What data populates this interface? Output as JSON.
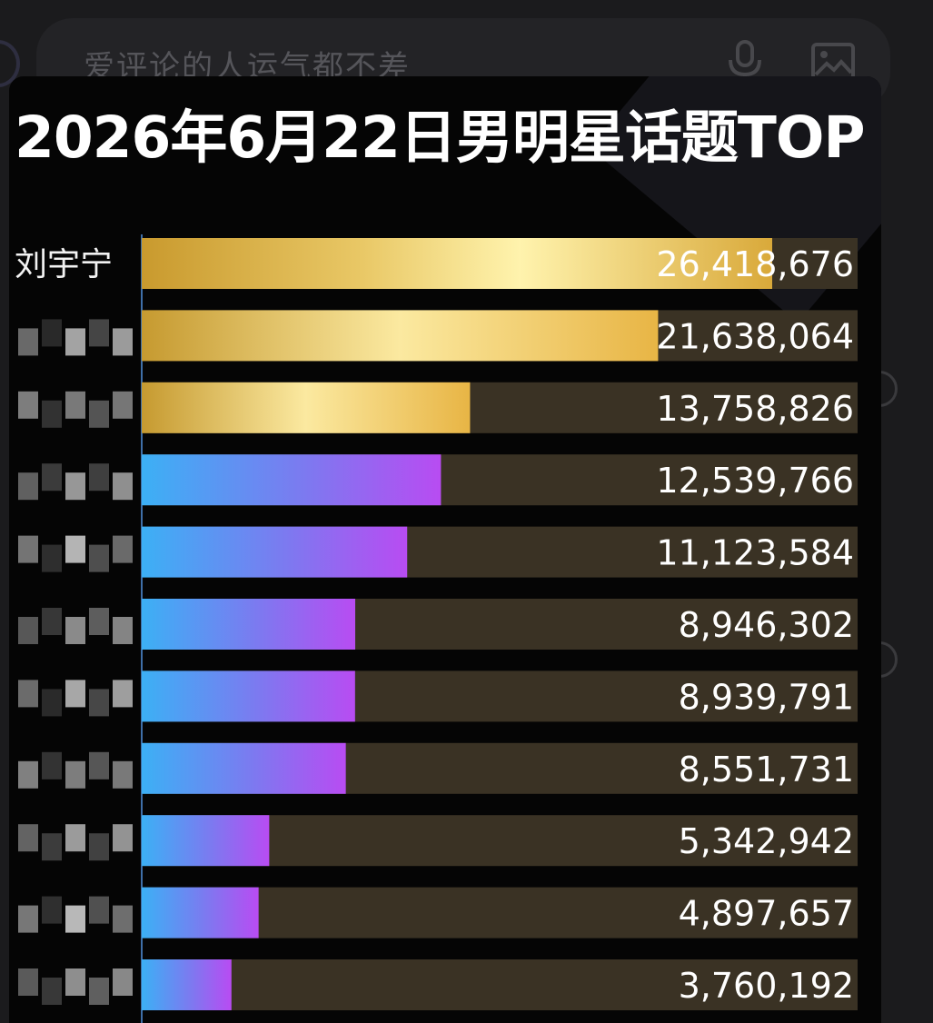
{
  "comment_bar": {
    "placeholder": "爱评论的人运气都不差",
    "mic_icon": "microphone-icon",
    "image_icon": "image-icon"
  },
  "colors": {
    "card_background": "#050505",
    "track": "#3a3224",
    "gold_bar_light": "#fff3ad",
    "gold_bar_dark": "#c99a2e",
    "gradient_bar_start": "#3cb0f5",
    "gradient_bar_end": "#b84cf2",
    "value_text": "#ffffff",
    "title_text": "#ffffff"
  },
  "chart_data": {
    "type": "bar",
    "orientation": "horizontal",
    "title": "2026年6月22日男明星话题TOP",
    "categories": [
      "刘宇宁",
      "",
      "",
      "",
      "",
      "",
      "",
      "",
      "",
      "",
      ""
    ],
    "category_note": "rows 2–11 names are pixelated in the original",
    "values": [
      26418676,
      21638064,
      13758826,
      12539766,
      11123584,
      8946302,
      8939791,
      8551731,
      5342942,
      4897657,
      3760192
    ],
    "value_labels": [
      "26,418,676",
      "21,638,064",
      "13,758,826",
      "12,539,766",
      "11,123,584",
      "8,946,302",
      "8,939,791",
      "8,551,731",
      "5,342,942",
      "4,897,657",
      "3,760,192"
    ],
    "bar_style": [
      "gold",
      "gold",
      "gold",
      "gradient",
      "gradient",
      "gradient",
      "gradient",
      "gradient",
      "gradient",
      "gradient",
      "gradient"
    ],
    "xlim": [
      0,
      30000000
    ],
    "grid": false,
    "legend": "none"
  }
}
